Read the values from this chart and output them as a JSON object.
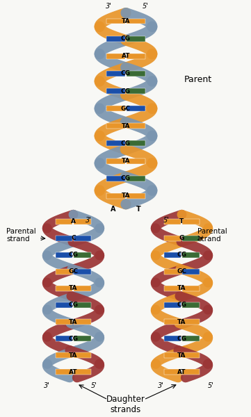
{
  "background_color": "#f5f5f0",
  "strand_colors": {
    "blue_gray": "#7a95b0",
    "orange": "#e8952a",
    "blue": "#1a4faa",
    "green": "#3a6b35",
    "red_brown": "#9b3535",
    "dark_teal": "#1a4040"
  },
  "parent_labels": [
    "TA",
    "CG",
    "AT",
    "CG",
    "CG",
    "GC",
    "TA",
    "CG",
    "TA",
    "CG",
    "TA"
  ],
  "left_labels": [
    "A",
    "C",
    "CG",
    "GC",
    "TA",
    "CG",
    "TA",
    "CG",
    "TA",
    "AT"
  ],
  "right_labels": [
    "T",
    "G",
    "CG",
    "GC",
    "TA",
    "CG",
    "TA",
    "CG",
    "TA",
    "AT"
  ],
  "figsize": [
    3.61,
    6.0
  ],
  "dpi": 100
}
